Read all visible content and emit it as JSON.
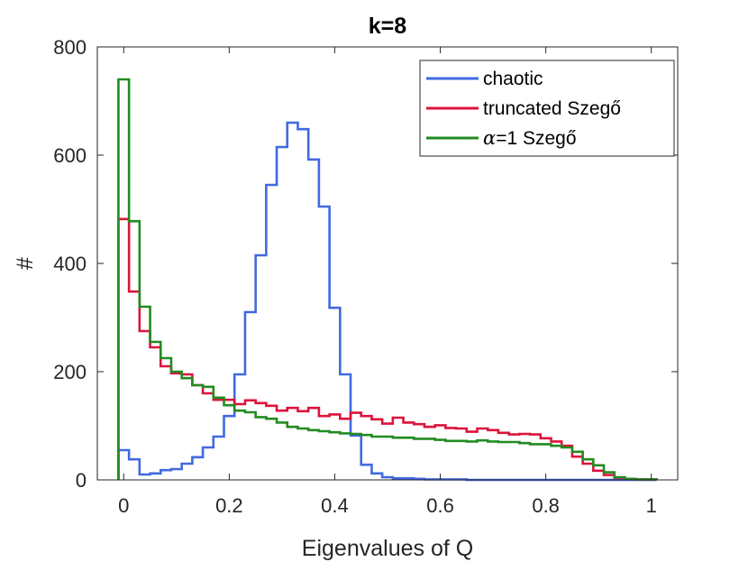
{
  "chart_data": {
    "type": "histogram",
    "title": "k=8",
    "xlabel": "Eigenvalues of Q",
    "ylabel": "#",
    "xlim": [
      -0.05,
      1.05
    ],
    "ylim": [
      0,
      800
    ],
    "xticks": [
      0,
      0.2,
      0.4,
      0.6,
      0.8,
      1
    ],
    "xtick_labels": [
      "0",
      "0.2",
      "0.4",
      "0.6",
      "0.8",
      "1"
    ],
    "yticks": [
      0,
      200,
      400,
      600,
      800
    ],
    "ytick_labels": [
      "0",
      "200",
      "400",
      "600",
      "800"
    ],
    "grid": false,
    "legend_position": "top-right",
    "bin_start": -0.01,
    "bin_width": 0.02,
    "series": [
      {
        "name": "chaotic",
        "label": "chaotic",
        "color": "#4169E1",
        "values": [
          55,
          38,
          10,
          12,
          18,
          20,
          30,
          42,
          60,
          80,
          118,
          195,
          310,
          415,
          545,
          615,
          660,
          648,
          592,
          505,
          318,
          195,
          82,
          28,
          12,
          5,
          3,
          3,
          2,
          1,
          1,
          1,
          1,
          0,
          0,
          0,
          0,
          0,
          0,
          0,
          0,
          0,
          0,
          0,
          0,
          0,
          0,
          0,
          0,
          0,
          0
        ]
      },
      {
        "name": "truncated Szegő",
        "label": "truncated Szegő",
        "color": "#DC143C",
        "values": [
          482,
          348,
          275,
          245,
          210,
          197,
          195,
          175,
          160,
          148,
          148,
          140,
          147,
          142,
          137,
          128,
          133,
          127,
          133,
          118,
          121,
          113,
          124,
          118,
          112,
          104,
          115,
          106,
          103,
          98,
          101,
          96,
          95,
          89,
          95,
          92,
          87,
          84,
          85,
          84,
          77,
          71,
          63,
          43,
          30,
          17,
          9,
          4,
          2,
          1,
          1
        ]
      },
      {
        "name": "α=1 Szegő",
        "label_math": "α",
        "label_rest": "=1 Szegő",
        "color": "#228B22",
        "values": [
          740,
          478,
          320,
          255,
          225,
          200,
          188,
          175,
          172,
          152,
          138,
          128,
          125,
          116,
          113,
          106,
          98,
          95,
          92,
          90,
          88,
          86,
          85,
          83,
          80,
          80,
          78,
          78,
          76,
          76,
          74,
          72,
          72,
          71,
          73,
          71,
          70,
          70,
          68,
          66,
          66,
          63,
          60,
          52,
          38,
          27,
          14,
          5,
          2,
          1,
          1
        ]
      }
    ]
  }
}
